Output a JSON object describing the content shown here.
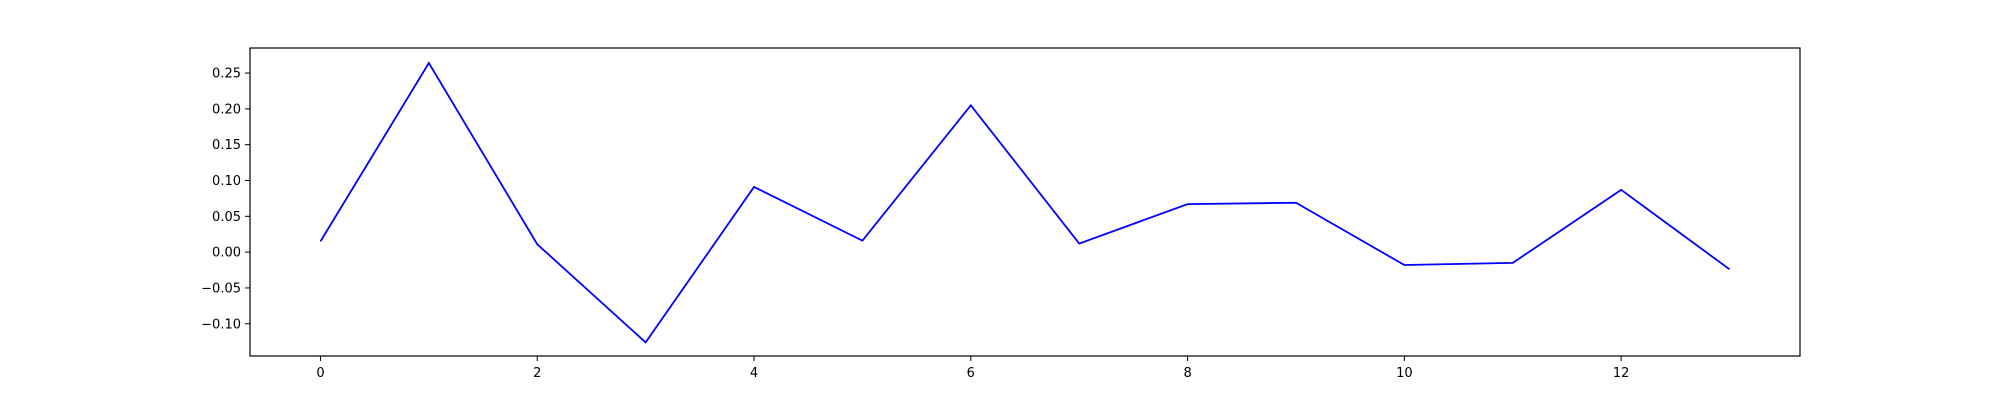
{
  "chart_data": {
    "type": "line",
    "title": "",
    "xlabel": "",
    "ylabel": "",
    "x": [
      0,
      1,
      2,
      3,
      4,
      5,
      6,
      7,
      8,
      9,
      10,
      11,
      12,
      13
    ],
    "series": [
      {
        "values": [
          0.015,
          0.264,
          0.011,
          -0.126,
          0.091,
          0.016,
          0.205,
          0.012,
          0.067,
          0.069,
          -0.018,
          -0.015,
          0.087,
          -0.024
        ],
        "color": "#0000ff"
      }
    ],
    "xlim": [
      -0.65,
      13.65
    ],
    "ylim": [
      -0.145,
      0.285
    ],
    "xticks": [
      0,
      2,
      4,
      6,
      8,
      10,
      12
    ],
    "xtick_labels": [
      "0",
      "2",
      "4",
      "6",
      "8",
      "10",
      "12"
    ],
    "yticks": [
      -0.1,
      -0.05,
      0.0,
      0.05,
      0.1,
      0.15,
      0.2,
      0.25
    ],
    "ytick_labels": [
      "−0.10",
      "−0.05",
      "0.00",
      "0.05",
      "0.10",
      "0.15",
      "0.20",
      "0.25"
    ],
    "grid": false,
    "legend": "none"
  }
}
